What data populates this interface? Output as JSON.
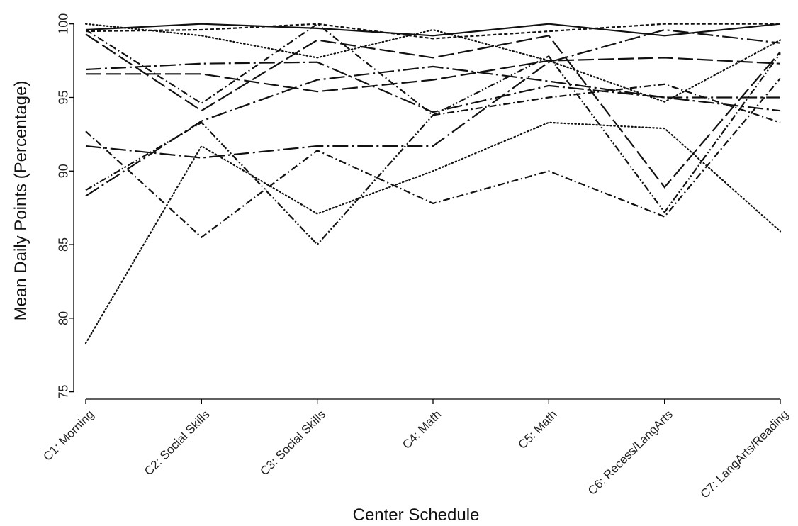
{
  "chart_data": {
    "type": "line",
    "title": "",
    "xlabel": "Center Schedule",
    "ylabel": "Mean Daily Points (Percentage)",
    "categories": [
      "C1: Morning",
      "C2: Social Skills",
      "C3: Social Skills",
      "C4: Math",
      "C5: Math",
      "C6: Recess/LangArts",
      "C7: LangArts/Reading"
    ],
    "yticks": [
      75,
      80,
      85,
      90,
      95,
      100
    ],
    "ylim": [
      74.5,
      100.9
    ],
    "grid": false,
    "legend": "none",
    "series": [
      {
        "values": [
          99.6,
          100.0,
          99.7,
          99.2,
          100.0,
          99.2,
          100.0
        ],
        "dash": "solid"
      },
      {
        "values": [
          100.0,
          99.2,
          97.7,
          99.6,
          97.5,
          94.7,
          98.9
        ],
        "dash": "dot"
      },
      {
        "values": [
          99.5,
          99.6,
          100.0,
          99.0,
          99.5,
          100.0,
          100.0
        ],
        "dash": "short-dash"
      },
      {
        "values": [
          99.3,
          94.1,
          98.9,
          97.7,
          99.2,
          88.9,
          98.1
        ],
        "dash": "long-dash"
      },
      {
        "values": [
          96.6,
          96.6,
          95.4,
          96.2,
          97.5,
          97.7,
          97.3
        ],
        "dash": "long-dash"
      },
      {
        "values": [
          96.9,
          97.3,
          97.4,
          94.0,
          95.8,
          95.0,
          95.0
        ],
        "dash": "long-dash-dot"
      },
      {
        "values": [
          88.3,
          93.4,
          96.2,
          97.1,
          96.1,
          95.0,
          94.1
        ],
        "dash": "long-dash-dot"
      },
      {
        "values": [
          91.7,
          90.9,
          91.7,
          91.7,
          97.4,
          99.6,
          98.7
        ],
        "dash": "long-dash-dot"
      },
      {
        "values": [
          99.6,
          94.6,
          100.0,
          93.8,
          95.0,
          95.9,
          93.3
        ],
        "dash": "dash-dot"
      },
      {
        "values": [
          92.7,
          85.5,
          91.4,
          87.8,
          90.0,
          86.9,
          96.3
        ],
        "dash": "dash-dot"
      },
      {
        "values": [
          88.7,
          93.3,
          85.0,
          93.8,
          97.8,
          87.2,
          98.0
        ],
        "dash": "dash-dot-dot"
      },
      {
        "values": [
          78.3,
          91.7,
          87.1,
          90.0,
          93.3,
          92.9,
          85.9
        ],
        "dash": "dot"
      }
    ]
  }
}
